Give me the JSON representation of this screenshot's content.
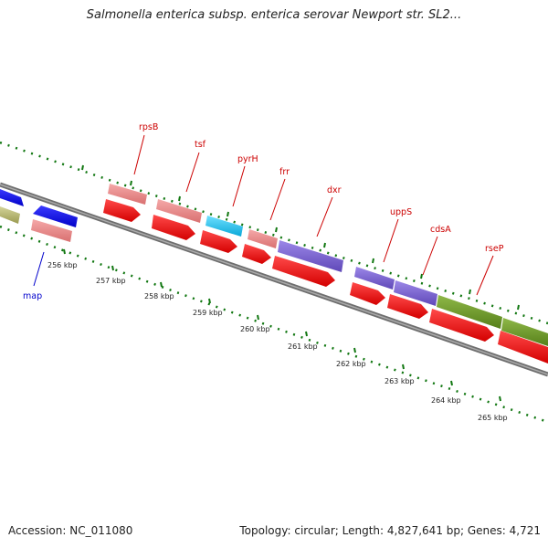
{
  "title": "Salmonella enterica subsp. enterica serovar Newport str. SL2...",
  "footer": {
    "accession": "Accession: NC_011080",
    "summary": "Topology: circular; Length: 4,827,641 bp; Genes: 4,721"
  },
  "colors": {
    "label_red": "#cc0000",
    "label_blue": "#0000cc",
    "tick_green": "#117711",
    "backbone": "#777777",
    "gene_red": "#ff0000",
    "gene_pink": "#e88a8a",
    "gene_blue": "#0000ee",
    "gene_cyan": "#11c6f0",
    "gene_purple": "#7b63cf",
    "gene_olive": "#6f9a2a",
    "gene_khaki": "#b8b870"
  },
  "scale_labels": [
    "256 kbp",
    "257 kbp",
    "258 kbp",
    "259 kbp",
    "260 kbp",
    "261 kbp",
    "262 kbp",
    "263 kbp",
    "264 kbp",
    "265 kbp"
  ],
  "gene_labels": [
    {
      "text": "rpsB",
      "color": "red"
    },
    {
      "text": "tsf",
      "color": "red"
    },
    {
      "text": "pyrH",
      "color": "red"
    },
    {
      "text": "frr",
      "color": "red"
    },
    {
      "text": "dxr",
      "color": "red"
    },
    {
      "text": "uppS",
      "color": "red"
    },
    {
      "text": "cdsA",
      "color": "red"
    },
    {
      "text": "rseP",
      "color": "red"
    },
    {
      "text": "map",
      "color": "blue"
    }
  ]
}
